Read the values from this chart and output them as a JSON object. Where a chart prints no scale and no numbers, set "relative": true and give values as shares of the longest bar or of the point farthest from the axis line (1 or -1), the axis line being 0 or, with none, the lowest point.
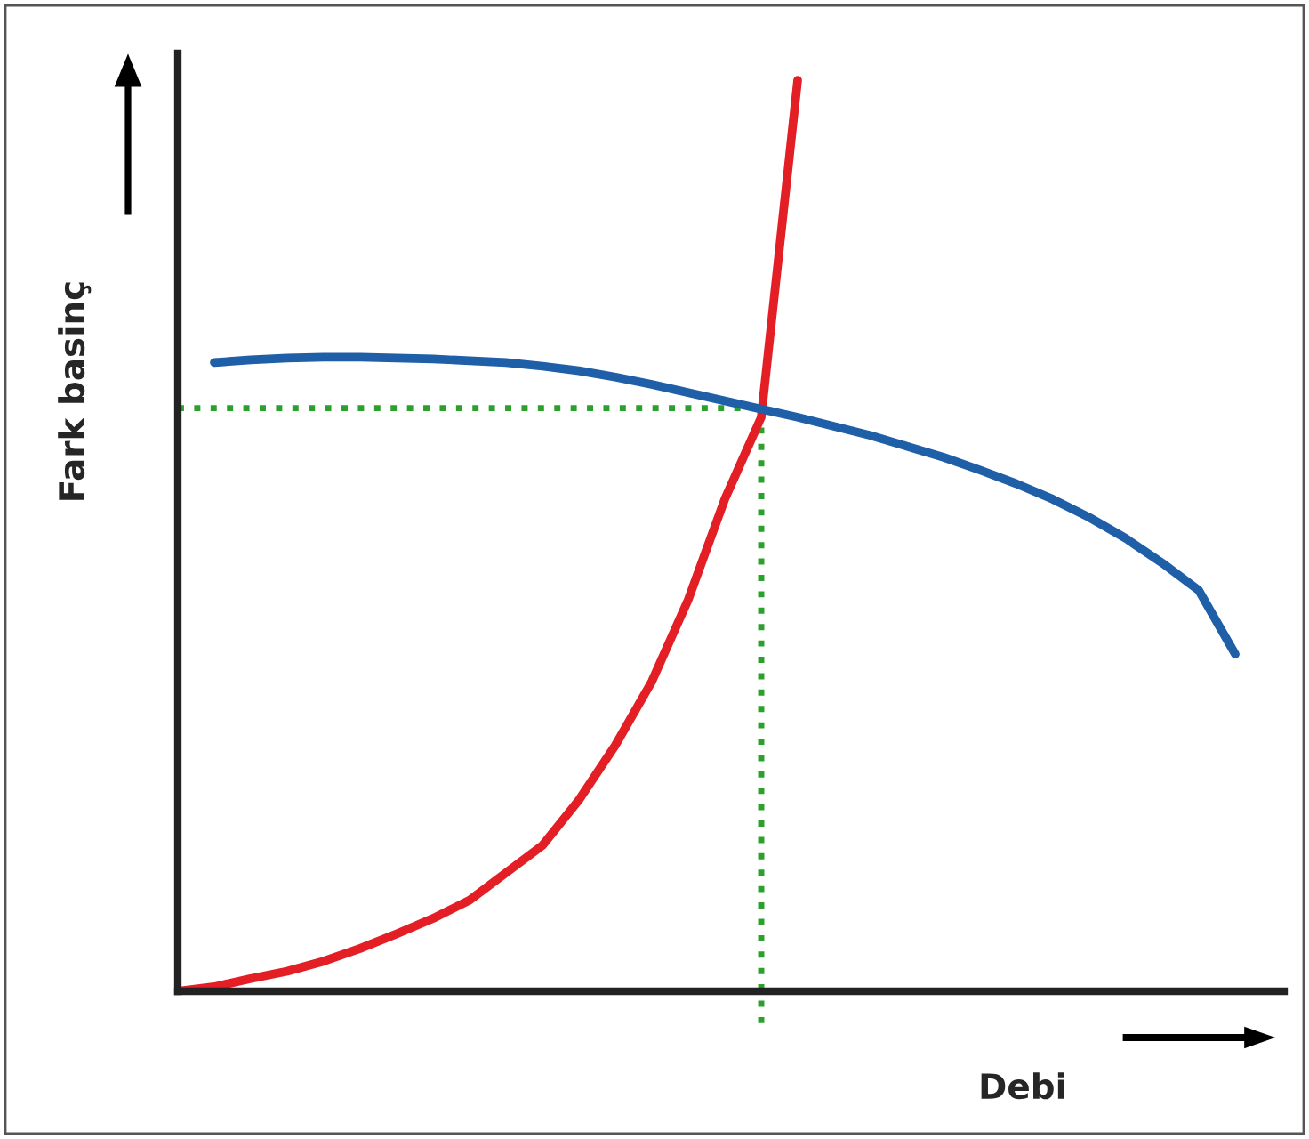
{
  "chart_data": {
    "type": "line",
    "relative": true,
    "xlabel": "Debi",
    "ylabel": "Fark basinç",
    "categories": [
      null,
      null,
      null,
      null,
      null,
      null,
      null,
      null,
      null,
      null,
      null,
      null,
      null,
      null,
      null,
      null,
      null,
      null,
      null,
      null,
      null,
      null,
      null,
      null,
      null,
      null,
      null,
      null,
      null,
      null,
      null
    ],
    "series": [
      {
        "color": "#e31e24",
        "values": [
          0,
          0.005,
          0.014,
          0.022,
          0.033,
          0.047,
          0.063,
          0.08,
          0.1,
          0.13,
          0.16,
          0.21,
          0.27,
          0.34,
          0.43,
          0.54,
          0.63,
          1.0,
          null,
          null,
          null,
          null,
          null,
          null,
          null,
          null,
          null,
          null,
          null,
          null,
          null
        ]
      },
      {
        "color": "#1f5fa8",
        "values": [
          null,
          0.69,
          0.693,
          0.695,
          0.696,
          0.696,
          0.695,
          0.694,
          0.692,
          0.69,
          0.686,
          0.681,
          0.674,
          0.666,
          0.657,
          0.648,
          0.639,
          0.63,
          0.62,
          0.61,
          0.598,
          0.586,
          0.572,
          0.557,
          0.54,
          0.52,
          0.497,
          0.47,
          0.44,
          0.37,
          null
        ]
      }
    ],
    "ref_lines": [
      {
        "axis": "y",
        "value": 0.64,
        "color": "#2ca02c",
        "line_style": "dotted"
      }
    ],
    "legend": false,
    "line_style": "solid",
    "marker": "none"
  }
}
